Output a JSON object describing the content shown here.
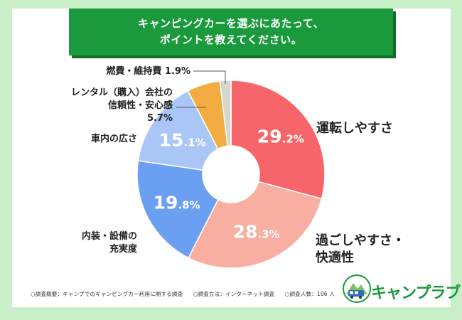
{
  "title_line1": "キャンピングカーを選ぶにあたって、",
  "title_line2": "ポイントを教えてください。",
  "footer": {
    "item1": "○調査概要：キャンプでのキャンピングカー利用に関する調査",
    "item2": "○調査方法：インターネット調査",
    "item3": "○調査人数：106 人"
  },
  "logo": {
    "text": "キャンプラブ",
    "icon": "campervan-mountain-badge-icon"
  },
  "colors": {
    "background": "#c9efc9",
    "title_bg": "#1a9a3c",
    "slice1": "#f6656a",
    "slice2": "#f8aea0",
    "slice3": "#6a9ff2",
    "slice4": "#a9c6f6",
    "slice5": "#f2ac41",
    "slice6": "#d6d6cf"
  },
  "chart_data": {
    "type": "pie",
    "donut": true,
    "unit": "%",
    "slices": [
      {
        "label": "運転しやすさ",
        "value": 29.2,
        "value_main": "29",
        "value_dec": ".2%",
        "color": "#f6656a"
      },
      {
        "label": "過ごしやすさ・快適性",
        "label_lines": [
          "過ごしやすさ・",
          "快適性"
        ],
        "value": 28.3,
        "value_main": "28",
        "value_dec": ".3%",
        "color": "#f8aea0"
      },
      {
        "label": "内装・設備の充実度",
        "label_lines": [
          "内装・設備の",
          "充実度"
        ],
        "value": 19.8,
        "value_main": "19",
        "value_dec": ".8%",
        "color": "#6a9ff2"
      },
      {
        "label": "車内の広さ",
        "value": 15.1,
        "value_main": "15",
        "value_dec": ".1%",
        "color": "#a9c6f6"
      },
      {
        "label": "レンタル（購入）会社の信頼性・安心感",
        "label_lines": [
          "レンタル（購入）会社の",
          "信頼性・安心感",
          "5.7%"
        ],
        "value": 5.7,
        "color": "#f2ac41"
      },
      {
        "label": "燃費・維持費",
        "label_lines": [
          "燃費・維持費 1.9%"
        ],
        "value": 1.9,
        "color": "#d6d6cf"
      }
    ]
  }
}
